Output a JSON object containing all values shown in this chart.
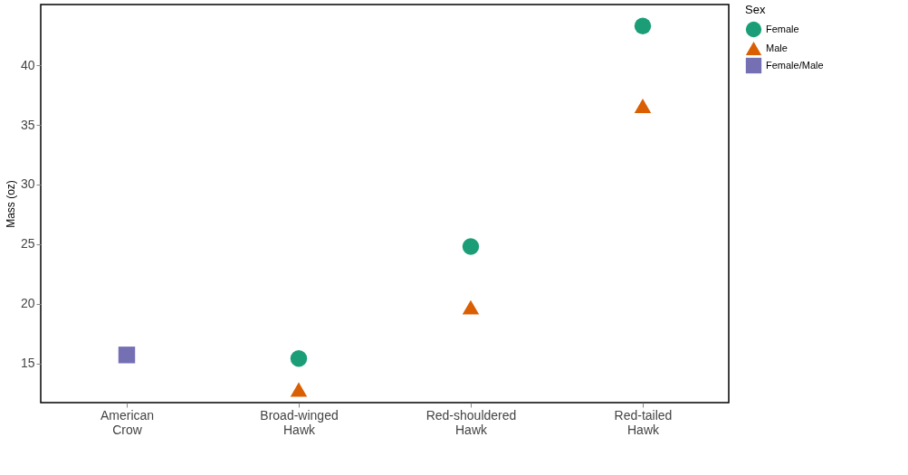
{
  "chart_data": {
    "type": "scatter",
    "ylabel": "Mass (oz)",
    "legend_title": "Sex",
    "legend": "right",
    "grid": false,
    "categories": [
      "American Crow",
      "Broad-winged Hawk",
      "Red-shouldered Hawk",
      "Red-tailed Hawk"
    ],
    "ylim": [
      11.7,
      45.1
    ],
    "yticks": [
      15,
      20,
      25,
      30,
      35,
      40
    ],
    "series": [
      {
        "name": "Female",
        "color": "#1b9e77",
        "marker": "circle",
        "values": [
          null,
          15.4,
          24.8,
          43.3
        ]
      },
      {
        "name": "Male",
        "color": "#d95f02",
        "marker": "triangle",
        "values": [
          null,
          12.8,
          19.7,
          36.6
        ]
      },
      {
        "name": "Female/Male",
        "color": "#7570b3",
        "marker": "square",
        "values": [
          15.7,
          null,
          null,
          null
        ]
      }
    ]
  }
}
